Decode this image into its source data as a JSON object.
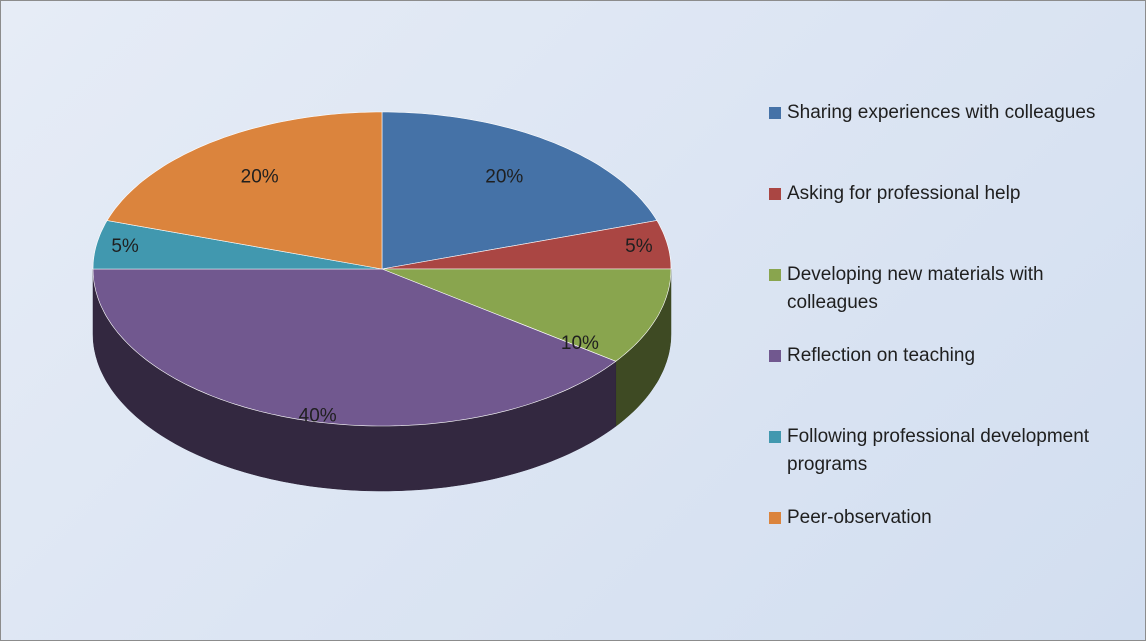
{
  "chart_data": {
    "type": "pie",
    "3d": true,
    "categories": [
      "Sharing experiences with colleagues",
      "Asking for professional help",
      "Developing new materials with colleagues",
      "Reflection on teaching",
      "Following professional development programs",
      "Peer-observation"
    ],
    "values": [
      20,
      5,
      10,
      40,
      5,
      20
    ],
    "value_labels": [
      "20%",
      "5%",
      "10%",
      "40%",
      "5%",
      "20%"
    ],
    "colors": [
      "#4572a7",
      "#aa4643",
      "#89a54e",
      "#71588f",
      "#4198af",
      "#db843d"
    ],
    "legend": "right"
  }
}
